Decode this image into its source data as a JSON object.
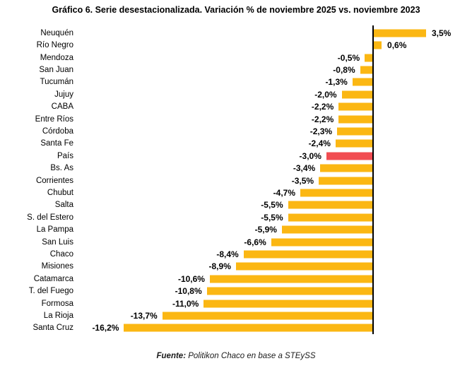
{
  "title": "Gráfico 6. Serie desestacionalizada. Variación % de noviembre 2025 vs. noviembre 2023",
  "source": {
    "prefix": "Fuente:",
    "text": " Politikon Chaco en base a STEySS"
  },
  "colors": {
    "bar": "#FBB713",
    "highlight": "#F14D52",
    "axis": "#000000"
  },
  "chart_data": {
    "type": "bar",
    "orientation": "horizontal",
    "title": "Gráfico 6. Serie desestacionalizada. Variación % de noviembre 2025 vs. noviembre 2023",
    "xlabel": "",
    "ylabel": "",
    "xlim": [
      -17,
      4.5
    ],
    "grid": false,
    "legend": false,
    "highlight_category": "País",
    "categories": [
      "Neuquén",
      "Río Negro",
      "Mendoza",
      "San Juan",
      "Tucumán",
      "Jujuy",
      "CABA",
      "Entre Ríos",
      "Córdoba",
      "Santa Fe",
      "País",
      "Bs. As",
      "Corrientes",
      "Chubut",
      "Salta",
      "S. del Estero",
      "La Pampa",
      "San Luis",
      "Chaco",
      "Misiones",
      "Catamarca",
      "T. del Fuego",
      "Formosa",
      "La Rioja",
      "Santa Cruz"
    ],
    "values": [
      3.5,
      0.6,
      -0.5,
      -0.8,
      -1.3,
      -2.0,
      -2.2,
      -2.2,
      -2.3,
      -2.4,
      -3.0,
      -3.4,
      -3.5,
      -4.7,
      -5.5,
      -5.5,
      -5.9,
      -6.6,
      -8.4,
      -8.9,
      -10.6,
      -10.8,
      -11.0,
      -13.7,
      -16.2
    ],
    "labels": [
      "3,5%",
      "0,6%",
      "-0,5%",
      "-0,8%",
      "-1,3%",
      "-2,0%",
      "-2,2%",
      "-2,2%",
      "-2,3%",
      "-2,4%",
      "-3,0%",
      "-3,4%",
      "-3,5%",
      "-4,7%",
      "-5,5%",
      "-5,5%",
      "-5,9%",
      "-6,6%",
      "-8,4%",
      "-8,9%",
      "-10,6%",
      "-10,8%",
      "-11,0%",
      "-13,7%",
      "-16,2%"
    ]
  }
}
